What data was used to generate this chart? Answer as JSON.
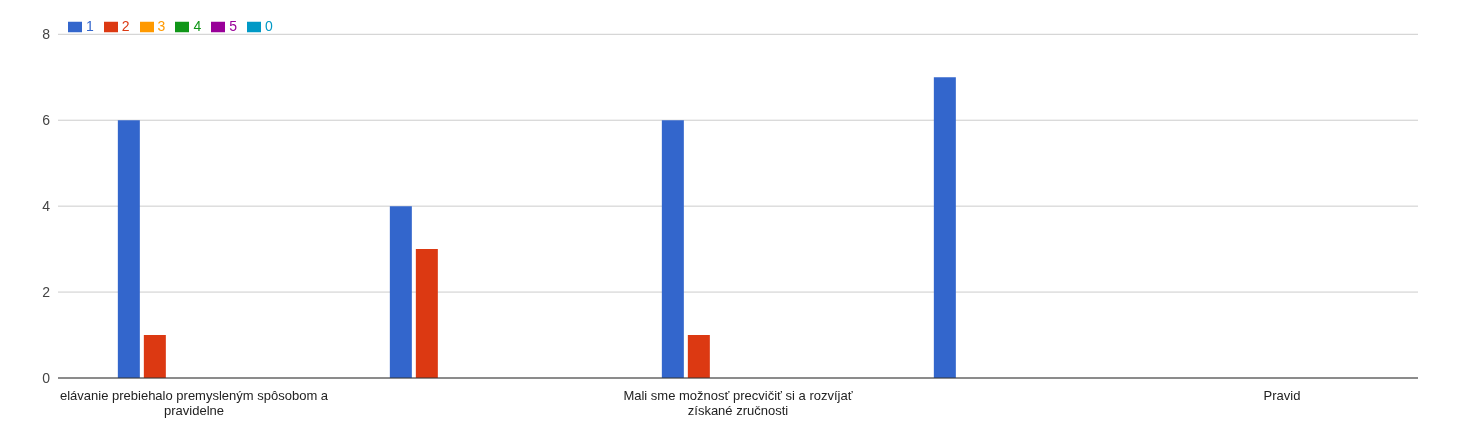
{
  "chart_data": {
    "type": "bar",
    "categories": [
      "elávanie prebiehalo premysleným spôsobom a pravidelne",
      null,
      "Mali sme možnosť precvičiť si a rozvíjať získané zručnosti",
      null,
      "Pravid"
    ],
    "series": [
      {
        "name": "1",
        "color": "#3366cc",
        "values": [
          6,
          4,
          6,
          7,
          null
        ]
      },
      {
        "name": "2",
        "color": "#dc3912",
        "values": [
          1,
          3,
          1,
          0,
          null
        ]
      },
      {
        "name": "3",
        "color": "#ff9900",
        "values": [
          0,
          0,
          0,
          0,
          null
        ]
      },
      {
        "name": "4",
        "color": "#109618",
        "values": [
          0,
          0,
          0,
          0,
          null
        ]
      },
      {
        "name": "5",
        "color": "#990099",
        "values": [
          0,
          0,
          0,
          0,
          null
        ]
      },
      {
        "name": "0",
        "color": "#0099c6",
        "values": [
          0,
          0,
          0,
          0,
          null
        ]
      }
    ],
    "ylim": [
      0,
      8
    ],
    "yticks": [
      0,
      2,
      4,
      6,
      8
    ],
    "grid": "y",
    "legend": "top left"
  }
}
